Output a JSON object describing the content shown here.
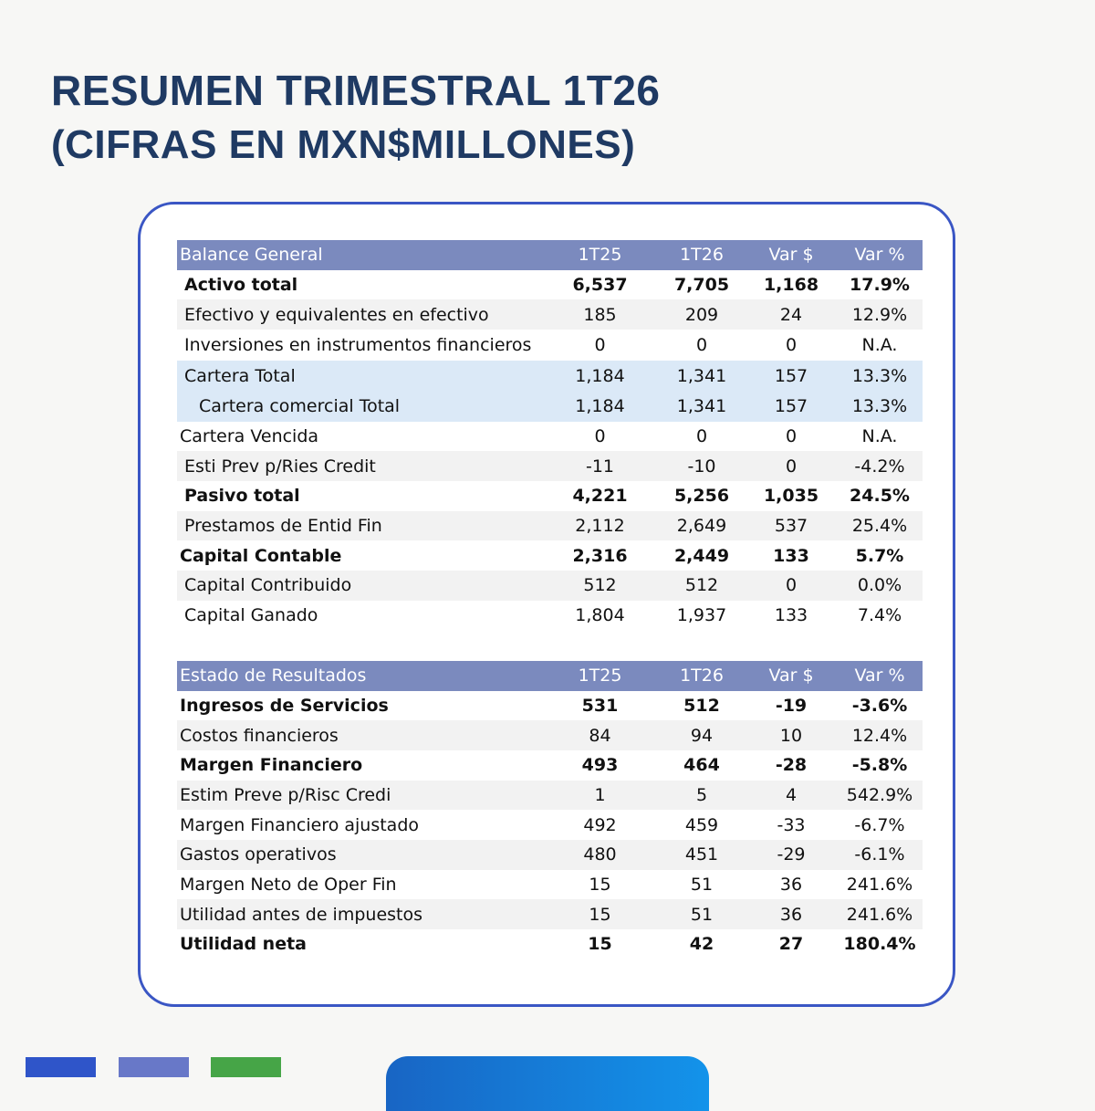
{
  "header": {
    "title": "RESUMEN TRIMESTRAL 1T26",
    "subtitle": "(CIFRAS EN MXN$MILLONES)"
  },
  "balance": {
    "columns": [
      "Balance General",
      "1T25",
      "1T26",
      "Var $",
      "Var %"
    ],
    "rows": [
      {
        "label": "Activo total",
        "v1": "6,537",
        "v2": "7,705",
        "var": "1,168",
        "pct": "17.9%"
      },
      {
        "label": "Efectivo y equivalentes en efectivo",
        "v1": "185",
        "v2": "209",
        "var": "24",
        "pct": "12.9%"
      },
      {
        "label": "Inversiones en instrumentos financieros",
        "v1": "0",
        "v2": "0",
        "var": "0",
        "pct": "N.A."
      },
      {
        "label": "Cartera Total",
        "v1": "1,184",
        "v2": "1,341",
        "var": "157",
        "pct": "13.3%"
      },
      {
        "label": "Cartera comercial  Total",
        "v1": "1,184",
        "v2": "1,341",
        "var": "157",
        "pct": "13.3%"
      },
      {
        "label": "Cartera Vencida",
        "v1": "0",
        "v2": "0",
        "var": "0",
        "pct": "N.A."
      },
      {
        "label": "Esti Prev p/Ries Credit",
        "v1": "-11",
        "v2": "-10",
        "var": "0",
        "pct": "-4.2%"
      },
      {
        "label": "Pasivo total",
        "v1": "4,221",
        "v2": "5,256",
        "var": "1,035",
        "pct": "24.5%"
      },
      {
        "label": "Prestamos de Entid Fin",
        "v1": "2,112",
        "v2": "2,649",
        "var": "537",
        "pct": "25.4%"
      },
      {
        "label": "Capital Contable",
        "v1": "2,316",
        "v2": "2,449",
        "var": "133",
        "pct": "5.7%"
      },
      {
        "label": "Capital Contribuido",
        "v1": "512",
        "v2": "512",
        "var": "0",
        "pct": "0.0%"
      },
      {
        "label": "Capital Ganado",
        "v1": "1,804",
        "v2": "1,937",
        "var": "133",
        "pct": "7.4%"
      }
    ]
  },
  "results": {
    "columns": [
      "Estado de Resultados",
      "1T25",
      "1T26",
      "Var $",
      "Var %"
    ],
    "rows": [
      {
        "label": "Ingresos de Servicios",
        "v1": "531",
        "v2": "512",
        "var": "-19",
        "pct": "-3.6%"
      },
      {
        "label": "Costos financieros",
        "v1": "84",
        "v2": "94",
        "var": "10",
        "pct": "12.4%"
      },
      {
        "label": "Margen Financiero",
        "v1": "493",
        "v2": "464",
        "var": "-28",
        "pct": "-5.8%"
      },
      {
        "label": "Estim Preve p/Risc Credi",
        "v1": "1",
        "v2": "5",
        "var": "4",
        "pct": "542.9%"
      },
      {
        "label": "Margen Financiero ajustado",
        "v1": "492",
        "v2": "459",
        "var": "-33",
        "pct": "-6.7%"
      },
      {
        "label": "Gastos operativos",
        "v1": "480",
        "v2": "451",
        "var": "-29",
        "pct": "-6.1%"
      },
      {
        "label": "Margen Neto de Oper Fin",
        "v1": "15",
        "v2": "51",
        "var": "36",
        "pct": "241.6%"
      },
      {
        "label": "Utilidad antes de impuestos",
        "v1": "15",
        "v2": "51",
        "var": "36",
        "pct": "241.6%"
      },
      {
        "label": "Utilidad neta",
        "v1": "15",
        "v2": "42",
        "var": "27",
        "pct": "180.4%"
      }
    ]
  }
}
